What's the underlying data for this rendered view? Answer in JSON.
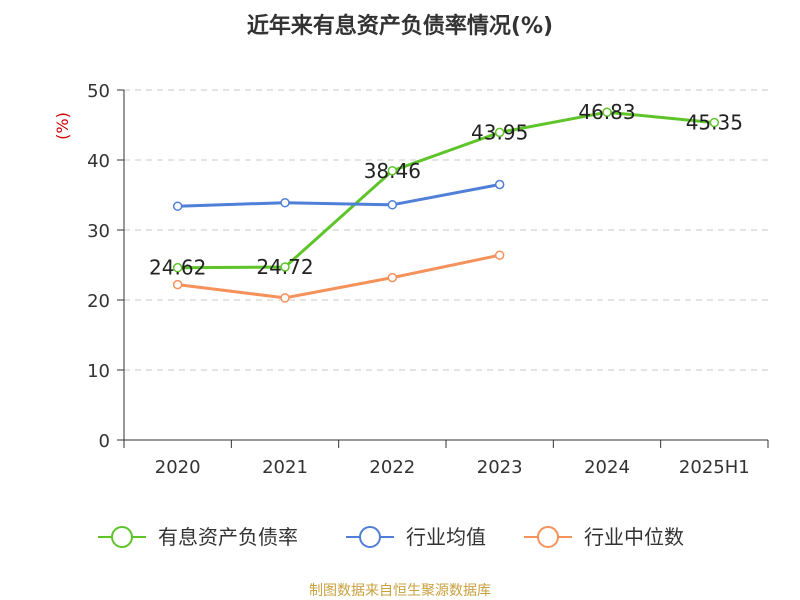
{
  "chart_data": {
    "type": "line",
    "title": "近年来有息资产负债率情况(%)",
    "ylabel": "(%)",
    "xlabel": "",
    "categories": [
      "2020",
      "2021",
      "2022",
      "2023",
      "2024",
      "2025H1"
    ],
    "ylim": [
      0,
      50
    ],
    "yticks": [
      0,
      10,
      20,
      30,
      40,
      50
    ],
    "grid": true,
    "legend_position": "bottom",
    "series": [
      {
        "name": "有息资产负债率",
        "color": "#5ec42a",
        "values": [
          24.62,
          24.72,
          38.46,
          43.95,
          46.83,
          45.35
        ],
        "labels": [
          "24.62",
          "24.72",
          "38.46",
          "43.95",
          "46.83",
          "45.35"
        ],
        "show_labels": true
      },
      {
        "name": "行业均值",
        "color": "#4f7fd8",
        "values": [
          33.4,
          33.9,
          33.6,
          36.5,
          null,
          null
        ],
        "show_labels": false
      },
      {
        "name": "行业中位数",
        "color": "#f5915a",
        "values": [
          22.2,
          20.3,
          23.2,
          26.4,
          null,
          null
        ],
        "show_labels": false
      }
    ],
    "source": "制图数据来自恒生聚源数据库"
  }
}
